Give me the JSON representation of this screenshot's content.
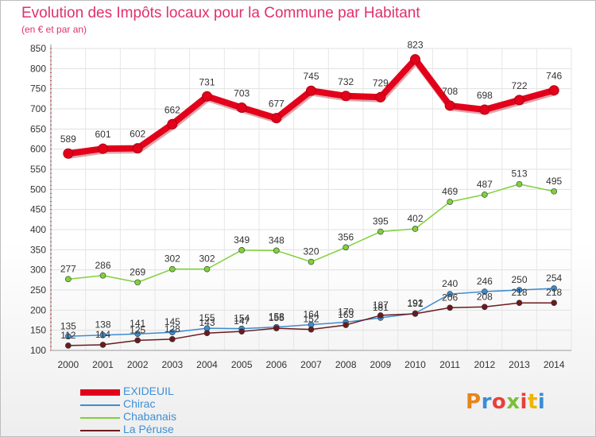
{
  "title": "Evolution des Impôts locaux pour la Commune par Habitant",
  "subtitle": "(en € et par an)",
  "logo": {
    "text": "Proxiti",
    "letter_colors": [
      "#e8841a",
      "#3b8ed3",
      "#e8403a",
      "#7bbf3a",
      "#e8403a",
      "#f0b400",
      "#3b8ed3"
    ]
  },
  "chart_data": {
    "type": "line",
    "categories": [
      "2000",
      "2001",
      "2002",
      "2003",
      "2004",
      "2005",
      "2006",
      "2007",
      "2008",
      "2009",
      "2010",
      "2011",
      "2012",
      "2013",
      "2014"
    ],
    "yticks": [
      100,
      150,
      200,
      250,
      300,
      350,
      400,
      450,
      500,
      550,
      600,
      650,
      700,
      750,
      800,
      850
    ],
    "ylim": [
      100,
      850
    ],
    "grid": true,
    "legend_position": "bottom-left",
    "series": [
      {
        "name": "EXIDEUIL",
        "color": "#e3001b",
        "bold": true,
        "values": [
          589,
          601,
          602,
          662,
          731,
          703,
          677,
          745,
          732,
          729,
          823,
          708,
          698,
          722,
          746
        ],
        "labels": [
          "589",
          "601",
          "602",
          "662",
          "731",
          "703",
          "677",
          "745",
          "732",
          "729",
          "823",
          "708",
          "698",
          "722",
          "746"
        ]
      },
      {
        "name": "Chirac",
        "color": "#3d8cd0",
        "bold": false,
        "values": [
          135,
          138,
          141,
          145,
          155,
          154,
          158,
          164,
          170,
          181,
          192,
          240,
          246,
          250,
          254
        ],
        "labels": [
          "135",
          "138",
          "141",
          "145",
          "155",
          "154",
          "158",
          "164",
          "170",
          "181",
          "192",
          "240",
          "246",
          "250",
          "254"
        ]
      },
      {
        "name": "Chabanais",
        "color": "#7fd13b",
        "bold": false,
        "values": [
          277,
          286,
          269,
          302,
          302,
          349,
          348,
          320,
          356,
          395,
          402,
          469,
          487,
          513,
          495
        ],
        "labels": [
          "277",
          "286",
          "269",
          "302",
          "302",
          "349",
          "348",
          "320",
          "356",
          "395",
          "402",
          "469",
          "487",
          "513",
          "495"
        ]
      },
      {
        "name": "La Péruse",
        "color": "#6b1a1e",
        "bold": false,
        "values": [
          112,
          114,
          125,
          128,
          143,
          147,
          155,
          152,
          163,
          187,
          191,
          206,
          208,
          218,
          218
        ],
        "labels": [
          "112",
          "114",
          "125",
          "128",
          "143",
          "147",
          "155",
          "152",
          "163",
          "187",
          "191",
          "206",
          "208",
          "218",
          "218"
        ]
      }
    ]
  }
}
